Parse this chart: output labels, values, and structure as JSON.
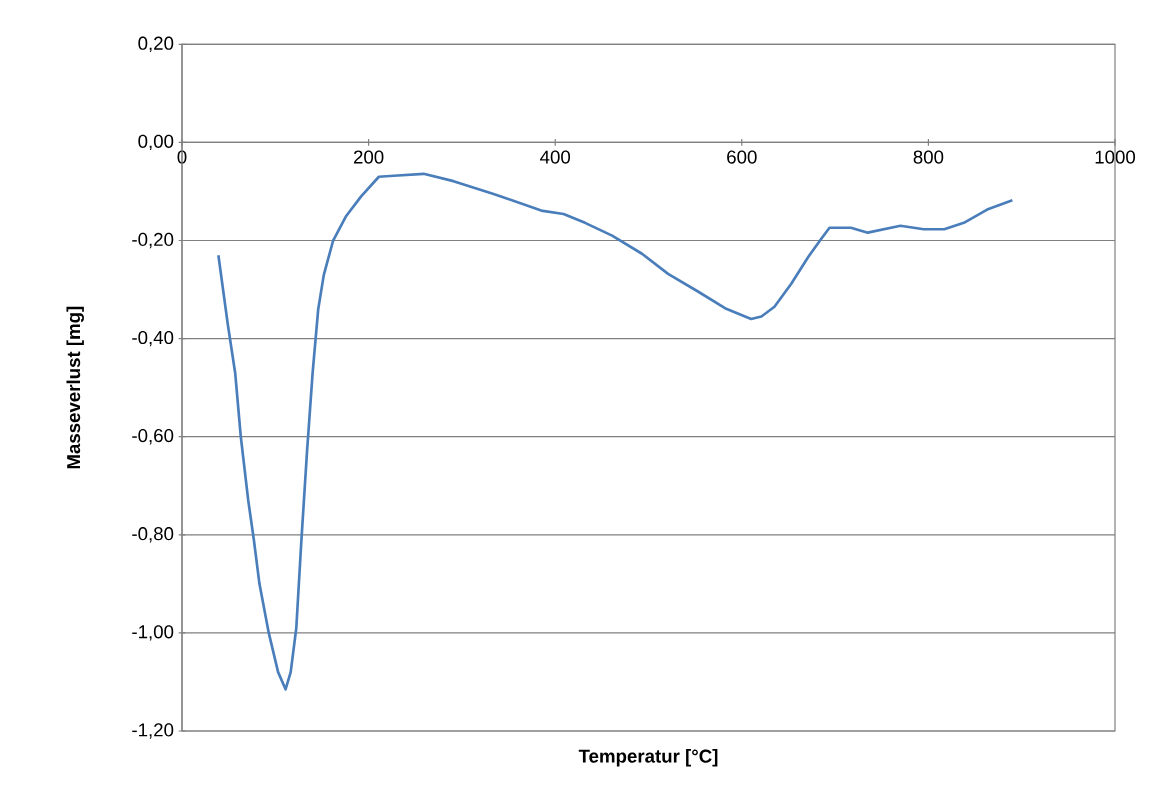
{
  "chart_data": {
    "type": "line",
    "xlabel": "Temperatur [°C]",
    "ylabel": "Masseverlust [mg]",
    "xlim": [
      0,
      1000
    ],
    "ylim": [
      -1.2,
      0.2
    ],
    "xticks": [
      0,
      200,
      400,
      600,
      800,
      1000
    ],
    "yticks": [
      {
        "value": -1.2,
        "label": "-1,20"
      },
      {
        "value": -1.0,
        "label": "-1,00"
      },
      {
        "value": -0.8,
        "label": "-0,80"
      },
      {
        "value": -0.6,
        "label": "-0,60"
      },
      {
        "value": -0.4,
        "label": "-0,40"
      },
      {
        "value": -0.2,
        "label": "-0,20"
      },
      {
        "value": 0,
        "label": "0,00"
      },
      {
        "value": 0.2,
        "label": "0,20"
      }
    ],
    "grid": "y",
    "marker": "none",
    "line_style": "solid",
    "series": [
      {
        "color": "#4a7ebb",
        "x": [
          39,
          49,
          57,
          63,
          71,
          77,
          83,
          93,
          103,
          111,
          116.5,
          122.5,
          128,
          134,
          140,
          146,
          152,
          162,
          176,
          192,
          211,
          227,
          259,
          291,
          334,
          385,
          409,
          432,
          461,
          493,
          521,
          553,
          582,
          610,
          621,
          635,
          653,
          671,
          685,
          694,
          717,
          735,
          770,
          795,
          817,
          838,
          863,
          890
        ],
        "values": [
          -0.23,
          -0.37,
          -0.47,
          -0.6,
          -0.73,
          -0.81,
          -0.9,
          -1.0,
          -1.08,
          -1.115,
          -1.08,
          -0.99,
          -0.81,
          -0.63,
          -0.47,
          -0.34,
          -0.27,
          -0.2,
          -0.15,
          -0.11,
          -0.07,
          -0.068,
          -0.064,
          -0.079,
          -0.105,
          -0.139,
          -0.146,
          -0.164,
          -0.19,
          -0.227,
          -0.268,
          -0.304,
          -0.338,
          -0.36,
          -0.355,
          -0.335,
          -0.288,
          -0.234,
          -0.197,
          -0.174,
          -0.174,
          -0.184,
          -0.17,
          -0.177,
          -0.177,
          -0.164,
          -0.137,
          -0.118
        ]
      }
    ]
  }
}
